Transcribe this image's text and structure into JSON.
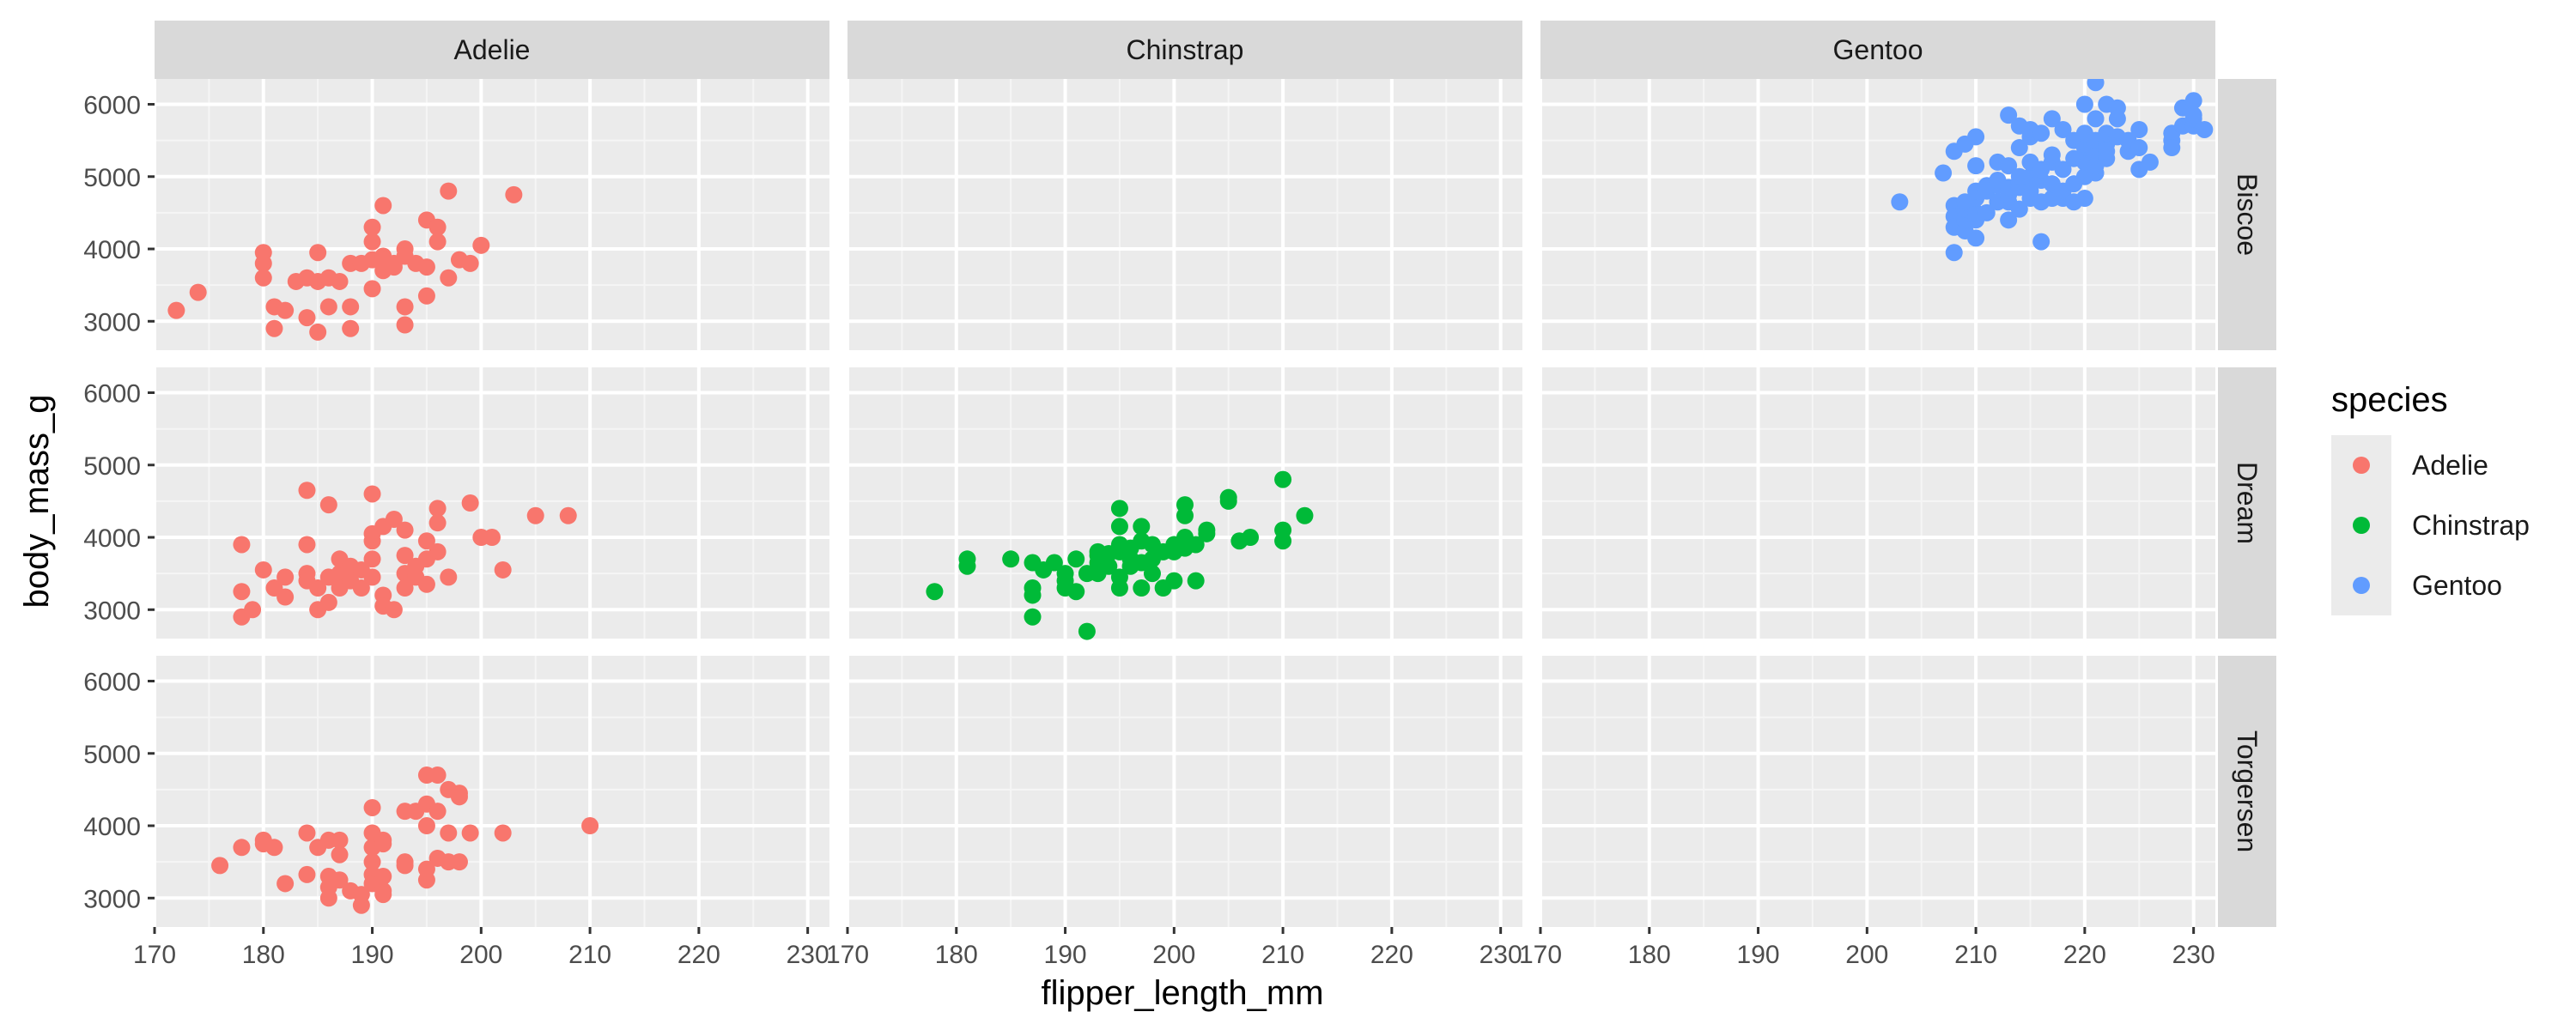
{
  "chart_data": {
    "type": "scatter",
    "facet_columns": [
      "Adelie",
      "Chinstrap",
      "Gentoo"
    ],
    "facet_rows": [
      "Biscoe",
      "Dream",
      "Torgersen"
    ],
    "xlabel": "flipper_length_mm",
    "ylabel": "body_mass_g",
    "xlim": [
      170,
      232
    ],
    "ylim": [
      2600,
      6350
    ],
    "x_ticks": [
      170,
      180,
      190,
      200,
      210,
      220,
      230
    ],
    "y_ticks": [
      3000,
      4000,
      5000,
      6000
    ],
    "grid": true,
    "legend": {
      "title": "species",
      "placement": "right",
      "entries": [
        {
          "label": "Adelie",
          "color": "#F8766D"
        },
        {
          "label": "Chinstrap",
          "color": "#00BA38"
        },
        {
          "label": "Gentoo",
          "color": "#619CFF"
        }
      ]
    },
    "panels": [
      {
        "species": "Adelie",
        "island": "Biscoe",
        "color": "#F8766D",
        "points": [
          [
            172,
            3150
          ],
          [
            174,
            3400
          ],
          [
            180,
            3950
          ],
          [
            180,
            3800
          ],
          [
            180,
            3600
          ],
          [
            181,
            3200
          ],
          [
            181,
            2900
          ],
          [
            182,
            3150
          ],
          [
            183,
            3550
          ],
          [
            184,
            3050
          ],
          [
            184,
            3600
          ],
          [
            185,
            2850
          ],
          [
            185,
            3550
          ],
          [
            185,
            3950
          ],
          [
            186,
            3600
          ],
          [
            186,
            3200
          ],
          [
            187,
            3550
          ],
          [
            188,
            2900
          ],
          [
            188,
            3200
          ],
          [
            188,
            3800
          ],
          [
            189,
            3800
          ],
          [
            190,
            3850
          ],
          [
            190,
            4100
          ],
          [
            190,
            4300
          ],
          [
            190,
            3450
          ],
          [
            191,
            3700
          ],
          [
            191,
            3900
          ],
          [
            191,
            3850
          ],
          [
            191,
            4600
          ],
          [
            192,
            3750
          ],
          [
            192,
            3800
          ],
          [
            193,
            4000
          ],
          [
            193,
            3900
          ],
          [
            193,
            3200
          ],
          [
            193,
            2950
          ],
          [
            194,
            3800
          ],
          [
            195,
            3750
          ],
          [
            195,
            3350
          ],
          [
            195,
            4400
          ],
          [
            196,
            4100
          ],
          [
            196,
            4300
          ],
          [
            197,
            3600
          ],
          [
            197,
            4800
          ],
          [
            198,
            3850
          ],
          [
            199,
            3800
          ],
          [
            200,
            4050
          ],
          [
            203,
            4750
          ]
        ]
      },
      {
        "species": "Chinstrap",
        "island": "Dream",
        "color": "#00BA38",
        "points": [
          [
            178,
            3250
          ],
          [
            181,
            3700
          ],
          [
            181,
            3600
          ],
          [
            185,
            3700
          ],
          [
            187,
            3650
          ],
          [
            187,
            3300
          ],
          [
            187,
            3200
          ],
          [
            187,
            2900
          ],
          [
            188,
            3550
          ],
          [
            189,
            3650
          ],
          [
            190,
            3400
          ],
          [
            190,
            3500
          ],
          [
            190,
            3300
          ],
          [
            191,
            3700
          ],
          [
            191,
            3250
          ],
          [
            192,
            3500
          ],
          [
            192,
            2700
          ],
          [
            193,
            3800
          ],
          [
            193,
            3650
          ],
          [
            193,
            3500
          ],
          [
            193,
            3750
          ],
          [
            194,
            3600
          ],
          [
            194,
            3775
          ],
          [
            195,
            3800
          ],
          [
            195,
            3900
          ],
          [
            195,
            4150
          ],
          [
            195,
            4400
          ],
          [
            195,
            3300
          ],
          [
            195,
            3450
          ],
          [
            196,
            3700
          ],
          [
            196,
            3600
          ],
          [
            196,
            3850
          ],
          [
            197,
            3650
          ],
          [
            197,
            3950
          ],
          [
            197,
            4150
          ],
          [
            197,
            3300
          ],
          [
            198,
            3700
          ],
          [
            198,
            3500
          ],
          [
            198,
            3900
          ],
          [
            199,
            3800
          ],
          [
            199,
            3300
          ],
          [
            200,
            3400
          ],
          [
            200,
            3900
          ],
          [
            200,
            3800
          ],
          [
            201,
            4000
          ],
          [
            201,
            4300
          ],
          [
            201,
            4450
          ],
          [
            201,
            3850
          ],
          [
            202,
            3400
          ],
          [
            202,
            3900
          ],
          [
            203,
            4050
          ],
          [
            203,
            4100
          ],
          [
            205,
            4500
          ],
          [
            205,
            4550
          ],
          [
            206,
            3950
          ],
          [
            207,
            4000
          ],
          [
            210,
            4800
          ],
          [
            210,
            4100
          ],
          [
            210,
            3950
          ],
          [
            212,
            4300
          ]
        ]
      },
      {
        "species": "Gentoo",
        "island": "Biscoe",
        "color": "#619CFF",
        "points": [
          [
            203,
            4650
          ],
          [
            207,
            5050
          ],
          [
            208,
            4600
          ],
          [
            208,
            4450
          ],
          [
            208,
            4300
          ],
          [
            208,
            3950
          ],
          [
            208,
            5350
          ],
          [
            209,
            4250
          ],
          [
            209,
            4400
          ],
          [
            209,
            4550
          ],
          [
            209,
            4650
          ],
          [
            209,
            5450
          ],
          [
            210,
            4150
          ],
          [
            210,
            4400
          ],
          [
            210,
            4500
          ],
          [
            210,
            4700
          ],
          [
            210,
            4800
          ],
          [
            210,
            5150
          ],
          [
            210,
            5550
          ],
          [
            211,
            4500
          ],
          [
            211,
            4800
          ],
          [
            211,
            4875
          ],
          [
            212,
            4650
          ],
          [
            212,
            4875
          ],
          [
            212,
            5200
          ],
          [
            212,
            4950
          ],
          [
            213,
            4400
          ],
          [
            213,
            4650
          ],
          [
            213,
            4750
          ],
          [
            213,
            4850
          ],
          [
            213,
            5150
          ],
          [
            213,
            5850
          ],
          [
            214,
            4550
          ],
          [
            214,
            4850
          ],
          [
            214,
            4925
          ],
          [
            214,
            5000
          ],
          [
            214,
            5400
          ],
          [
            214,
            5700
          ],
          [
            215,
            4700
          ],
          [
            215,
            4800
          ],
          [
            215,
            5000
          ],
          [
            215,
            5200
          ],
          [
            215,
            5550
          ],
          [
            215,
            5650
          ],
          [
            216,
            4100
          ],
          [
            216,
            4650
          ],
          [
            216,
            4950
          ],
          [
            216,
            5100
          ],
          [
            216,
            5600
          ],
          [
            217,
            4700
          ],
          [
            217,
            4900
          ],
          [
            217,
            5200
          ],
          [
            217,
            5300
          ],
          [
            217,
            5800
          ],
          [
            218,
            4700
          ],
          [
            218,
            4800
          ],
          [
            218,
            5100
          ],
          [
            218,
            5650
          ],
          [
            219,
            4650
          ],
          [
            219,
            4900
          ],
          [
            219,
            5250
          ],
          [
            219,
            5500
          ],
          [
            220,
            4700
          ],
          [
            220,
            5000
          ],
          [
            220,
            5200
          ],
          [
            220,
            5400
          ],
          [
            220,
            5450
          ],
          [
            220,
            5600
          ],
          [
            220,
            6000
          ],
          [
            221,
            5050
          ],
          [
            221,
            5150
          ],
          [
            221,
            5300
          ],
          [
            221,
            5500
          ],
          [
            221,
            5800
          ],
          [
            221,
            6300
          ],
          [
            222,
            5250
          ],
          [
            222,
            5450
          ],
          [
            222,
            5600
          ],
          [
            222,
            6000
          ],
          [
            222,
            5350
          ],
          [
            223,
            5550
          ],
          [
            223,
            5950
          ],
          [
            223,
            5800
          ],
          [
            224,
            5350
          ],
          [
            224,
            5500
          ],
          [
            225,
            5100
          ],
          [
            225,
            5400
          ],
          [
            225,
            5650
          ],
          [
            226,
            5200
          ],
          [
            228,
            5500
          ],
          [
            228,
            5600
          ],
          [
            228,
            5400
          ],
          [
            229,
            5700
          ],
          [
            229,
            5950
          ],
          [
            230,
            5700
          ],
          [
            230,
            5800
          ],
          [
            230,
            6050
          ],
          [
            230,
            5850
          ],
          [
            231,
            5650
          ]
        ]
      },
      {
        "species": "Adelie",
        "island": "Dream",
        "color": "#F8766D",
        "points": [
          [
            178,
            3250
          ],
          [
            178,
            3900
          ],
          [
            178,
            2900
          ],
          [
            179,
            3000
          ],
          [
            180,
            3550
          ],
          [
            181,
            3300
          ],
          [
            182,
            3450
          ],
          [
            182,
            3175
          ],
          [
            184,
            3900
          ],
          [
            184,
            4650
          ],
          [
            184,
            3500
          ],
          [
            184,
            3400
          ],
          [
            185,
            3300
          ],
          [
            185,
            3000
          ],
          [
            186,
            3450
          ],
          [
            186,
            3100
          ],
          [
            186,
            4450
          ],
          [
            187,
            3500
          ],
          [
            187,
            3700
          ],
          [
            187,
            3300
          ],
          [
            188,
            3400
          ],
          [
            188,
            3600
          ],
          [
            189,
            3550
          ],
          [
            189,
            3300
          ],
          [
            190,
            3950
          ],
          [
            190,
            4600
          ],
          [
            190,
            4050
          ],
          [
            190,
            3700
          ],
          [
            190,
            3450
          ],
          [
            191,
            3200
          ],
          [
            191,
            3050
          ],
          [
            191,
            4150
          ],
          [
            192,
            4250
          ],
          [
            192,
            3000
          ],
          [
            193,
            4100
          ],
          [
            193,
            3750
          ],
          [
            193,
            3500
          ],
          [
            193,
            3300
          ],
          [
            194,
            3450
          ],
          [
            194,
            3600
          ],
          [
            195,
            3700
          ],
          [
            195,
            3350
          ],
          [
            195,
            3950
          ],
          [
            196,
            4400
          ],
          [
            196,
            4200
          ],
          [
            196,
            3800
          ],
          [
            197,
            3450
          ],
          [
            199,
            4475
          ],
          [
            200,
            4000
          ],
          [
            201,
            4000
          ],
          [
            202,
            3550
          ],
          [
            205,
            4300
          ],
          [
            208,
            4300
          ]
        ]
      },
      {
        "species": "Adelie",
        "island": "Torgersen",
        "color": "#F8766D",
        "points": [
          [
            176,
            3450
          ],
          [
            178,
            3700
          ],
          [
            180,
            3800
          ],
          [
            180,
            3750
          ],
          [
            181,
            3700
          ],
          [
            182,
            3200
          ],
          [
            184,
            3900
          ],
          [
            184,
            3325
          ],
          [
            185,
            3700
          ],
          [
            186,
            3800
          ],
          [
            186,
            3300
          ],
          [
            186,
            3150
          ],
          [
            186,
            3000
          ],
          [
            187,
            3800
          ],
          [
            187,
            3600
          ],
          [
            187,
            3250
          ],
          [
            188,
            3100
          ],
          [
            189,
            2900
          ],
          [
            189,
            3050
          ],
          [
            190,
            4250
          ],
          [
            190,
            3900
          ],
          [
            190,
            3700
          ],
          [
            190,
            3500
          ],
          [
            190,
            3325
          ],
          [
            190,
            3200
          ],
          [
            191,
            3800
          ],
          [
            191,
            3750
          ],
          [
            191,
            3100
          ],
          [
            191,
            3050
          ],
          [
            191,
            3300
          ],
          [
            193,
            3500
          ],
          [
            193,
            3450
          ],
          [
            193,
            4200
          ],
          [
            194,
            4200
          ],
          [
            195,
            4700
          ],
          [
            195,
            4300
          ],
          [
            195,
            4000
          ],
          [
            195,
            3250
          ],
          [
            195,
            3400
          ],
          [
            196,
            4700
          ],
          [
            196,
            3550
          ],
          [
            196,
            4200
          ],
          [
            197,
            4500
          ],
          [
            197,
            3900
          ],
          [
            197,
            3500
          ],
          [
            198,
            4400
          ],
          [
            198,
            4450
          ],
          [
            198,
            3500
          ],
          [
            199,
            3900
          ],
          [
            202,
            3900
          ],
          [
            210,
            4000
          ]
        ]
      }
    ]
  }
}
